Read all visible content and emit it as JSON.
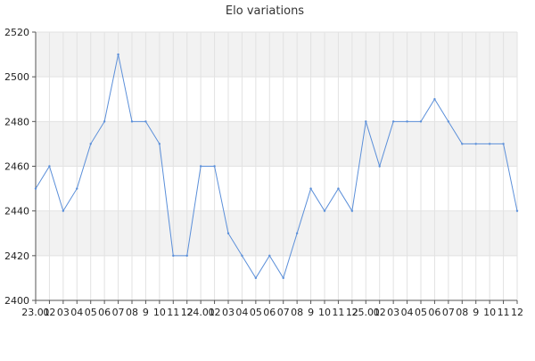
{
  "chart_data": {
    "type": "line",
    "title": "Elo variations",
    "xlabel": "",
    "ylabel": "",
    "ylim": [
      2400,
      2520
    ],
    "y_ticks": [
      2400,
      2420,
      2440,
      2460,
      2480,
      2500,
      2520
    ],
    "x_tick_labels": [
      "23.01",
      "02",
      "03",
      "04",
      "05",
      "06",
      "07",
      "08",
      "9",
      "10",
      "11",
      "12",
      "24.01",
      "02",
      "03",
      "04",
      "05",
      "06",
      "07",
      "08",
      "9",
      "10",
      "11",
      "12",
      "25.01",
      "02",
      "03",
      "04",
      "05",
      "06",
      "07",
      "08",
      "9",
      "10",
      "11",
      "12"
    ],
    "grid": true,
    "legend": "none",
    "series": [
      {
        "color": "#5b8fd9",
        "values": [
          2450,
          2460,
          2440,
          2450,
          2470,
          2480,
          2510,
          2480,
          2480,
          2470,
          2420,
          2420,
          2460,
          2460,
          2430,
          2420,
          2410,
          2420,
          2410,
          2430,
          2450,
          2440,
          2450,
          2440,
          2480,
          2460,
          2480,
          2480,
          2480,
          2490,
          2480,
          2470,
          2470,
          2470,
          2470,
          2440
        ]
      }
    ]
  }
}
